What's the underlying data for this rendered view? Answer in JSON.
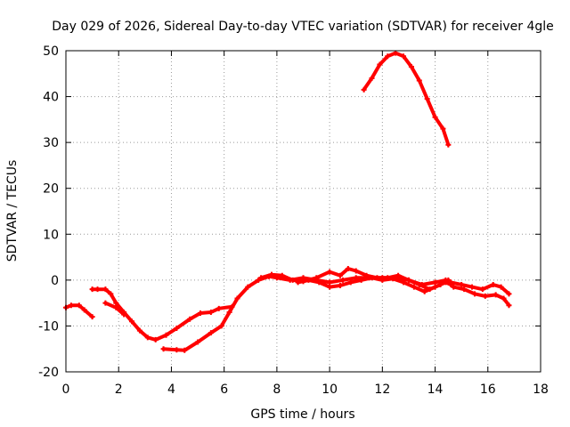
{
  "chart_data": {
    "type": "line",
    "title": "Day 029 of 2026, Sidereal Day-to-day VTEC variation (SDTVAR) for receiver 4gle",
    "xlabel": "GPS time / hours",
    "ylabel": "SDTVAR / TECUs",
    "xlim": [
      0,
      18
    ],
    "ylim": [
      -20,
      50
    ],
    "xticks": [
      0,
      2,
      4,
      6,
      8,
      10,
      12,
      14,
      16,
      18
    ],
    "yticks": [
      -20,
      -10,
      0,
      10,
      20,
      30,
      40,
      50
    ],
    "grid": true,
    "color": "#ff0000",
    "series": [
      {
        "name": "segment-a",
        "points": [
          [
            0.0,
            -6
          ],
          [
            0.2,
            -5.5
          ],
          [
            0.5,
            -5.5
          ],
          [
            0.7,
            -6.5
          ],
          [
            1.0,
            -8
          ]
        ]
      },
      {
        "name": "segment-b",
        "points": [
          [
            1.0,
            -2
          ],
          [
            1.2,
            -2
          ],
          [
            1.5,
            -2
          ],
          [
            1.7,
            -3
          ],
          [
            1.9,
            -5
          ],
          [
            2.2,
            -7
          ],
          [
            2.5,
            -9
          ],
          [
            2.8,
            -11
          ],
          [
            3.1,
            -12.5
          ],
          [
            3.4,
            -13
          ],
          [
            3.8,
            -12
          ],
          [
            4.2,
            -10.5
          ],
          [
            4.7,
            -8.5
          ],
          [
            5.1,
            -7.2
          ],
          [
            5.5,
            -7
          ],
          [
            5.8,
            -6.2
          ],
          [
            6.3,
            -5.8
          ]
        ]
      },
      {
        "name": "segment-c",
        "points": [
          [
            1.5,
            -5
          ],
          [
            1.9,
            -6
          ],
          [
            2.2,
            -7.5
          ]
        ]
      },
      {
        "name": "segment-d",
        "points": [
          [
            3.7,
            -15
          ],
          [
            4.2,
            -15.2
          ],
          [
            4.5,
            -15.3
          ],
          [
            5.0,
            -13.5
          ],
          [
            5.5,
            -11.5
          ],
          [
            5.9,
            -10
          ],
          [
            6.2,
            -7
          ],
          [
            6.5,
            -4
          ],
          [
            6.9,
            -1.5
          ],
          [
            7.3,
            0
          ],
          [
            7.7,
            0.8
          ],
          [
            8.0,
            0.5
          ],
          [
            8.5,
            0
          ],
          [
            9.0,
            0.5
          ],
          [
            9.5,
            0
          ],
          [
            10.0,
            -0.5
          ],
          [
            10.5,
            0
          ],
          [
            11.0,
            0.5
          ],
          [
            11.5,
            0.5
          ],
          [
            12.0,
            0.5
          ],
          [
            12.5,
            0.5
          ],
          [
            13.0,
            0
          ],
          [
            13.5,
            -1
          ],
          [
            14.0,
            -0.5
          ],
          [
            14.4,
            0
          ]
        ]
      },
      {
        "name": "segment-e",
        "points": [
          [
            7.4,
            0.5
          ],
          [
            7.8,
            1.2
          ],
          [
            8.2,
            1
          ],
          [
            8.6,
            0
          ],
          [
            9.0,
            -0.3
          ],
          [
            9.5,
            0.5
          ],
          [
            10.0,
            1.8
          ],
          [
            10.4,
            1
          ],
          [
            10.7,
            2.5
          ],
          [
            11.0,
            2
          ],
          [
            11.4,
            1
          ],
          [
            11.8,
            0.5
          ],
          [
            12.2,
            0.5
          ],
          [
            12.6,
            1
          ],
          [
            13.0,
            0
          ],
          [
            13.4,
            -1
          ],
          [
            13.8,
            -2
          ],
          [
            14.2,
            -1
          ],
          [
            14.5,
            0
          ]
        ]
      },
      {
        "name": "segment-f",
        "points": [
          [
            8.8,
            -0.5
          ],
          [
            9.2,
            0
          ],
          [
            9.6,
            -0.5
          ],
          [
            10.0,
            -1.5
          ],
          [
            10.4,
            -1.2
          ],
          [
            10.8,
            -0.5
          ],
          [
            11.2,
            0
          ],
          [
            11.6,
            0.5
          ],
          [
            12.0,
            0
          ],
          [
            12.4,
            0.3
          ],
          [
            12.8,
            -0.5
          ],
          [
            13.2,
            -1.5
          ],
          [
            13.6,
            -2.5
          ],
          [
            14.0,
            -1.5
          ],
          [
            14.4,
            -0.5
          ],
          [
            14.6,
            -1
          ]
        ]
      },
      {
        "name": "segment-g",
        "points": [
          [
            14.6,
            -0.5
          ],
          [
            15.0,
            -1
          ],
          [
            15.4,
            -1.5
          ],
          [
            15.8,
            -2
          ],
          [
            16.2,
            -1
          ],
          [
            16.5,
            -1.5
          ],
          [
            16.8,
            -3
          ]
        ]
      },
      {
        "name": "segment-h",
        "points": [
          [
            14.7,
            -1.5
          ],
          [
            15.1,
            -2
          ],
          [
            15.5,
            -3
          ],
          [
            15.9,
            -3.5
          ],
          [
            16.3,
            -3.2
          ],
          [
            16.6,
            -4
          ],
          [
            16.8,
            -5.5
          ]
        ]
      },
      {
        "name": "segment-i",
        "points": [
          [
            11.3,
            41.5
          ],
          [
            11.6,
            44
          ],
          [
            11.9,
            47
          ],
          [
            12.2,
            48.8
          ],
          [
            12.5,
            49.5
          ],
          [
            12.8,
            48.8
          ],
          [
            13.1,
            46.5
          ],
          [
            13.4,
            43.5
          ],
          [
            13.7,
            39.5
          ],
          [
            14.0,
            35.5
          ],
          [
            14.3,
            33
          ],
          [
            14.5,
            29.5
          ]
        ]
      }
    ]
  }
}
